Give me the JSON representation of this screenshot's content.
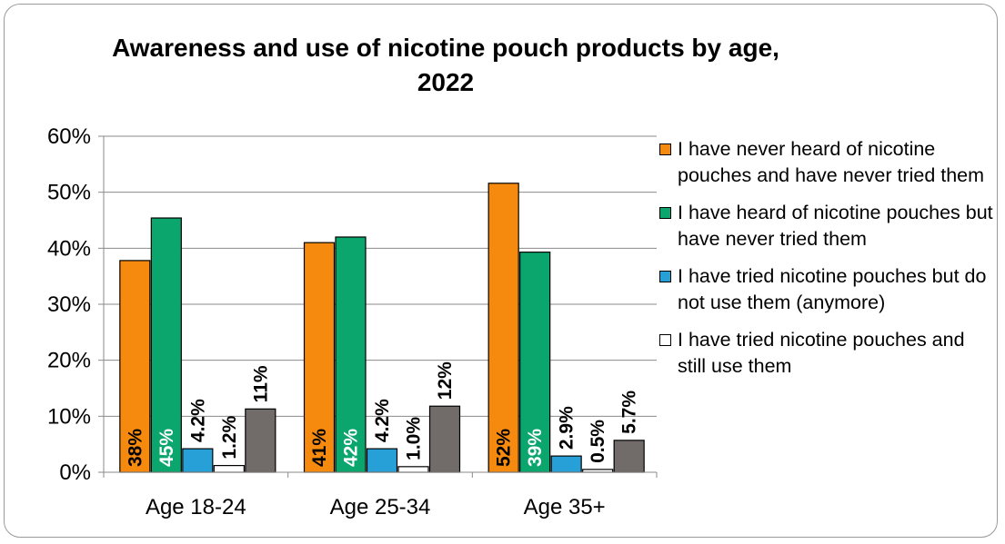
{
  "chart_data": {
    "type": "bar",
    "title": "Awareness and use of nicotine pouch products by age, 2022",
    "categories": [
      "Age 18-24",
      "Age 25-34",
      "Age 35+"
    ],
    "ylim": [
      0,
      60
    ],
    "yticks": [
      "0%",
      "10%",
      "20%",
      "30%",
      "40%",
      "50%",
      "60%"
    ],
    "grid": true,
    "legend_position": "right",
    "series": [
      {
        "name": "I have never heard of nicotine pouches and have never tried them",
        "color": "#f68a0e",
        "values": [
          37.8,
          41.0,
          51.6
        ],
        "labels": [
          "38%",
          "41%",
          "52%"
        ],
        "label_color": "#000000",
        "label_position": "inside-base"
      },
      {
        "name": "I have heard of nicotine pouches but have never tried them",
        "color": "#0aa66e",
        "values": [
          45.4,
          42.0,
          39.3
        ],
        "labels": [
          "45%",
          "42%",
          "39%"
        ],
        "label_color": "#ffffff",
        "label_position": "inside-base"
      },
      {
        "name": "I have tried nicotine pouches but do not use them (anymore)",
        "color": "#27a0d8",
        "values": [
          4.2,
          4.2,
          2.9
        ],
        "labels": [
          "4.2%",
          "4.2%",
          "2.9%"
        ],
        "label_color": "#000000",
        "label_position": "above"
      },
      {
        "name": "I have tried nicotine pouches and still use them",
        "color": "#ffffff",
        "values": [
          1.2,
          1.0,
          0.5
        ],
        "labels": [
          "1.2%",
          "1.0%",
          "0.5%"
        ],
        "label_color": "#000000",
        "label_position": "above"
      },
      {
        "name": "",
        "color": "#716c69",
        "values": [
          11.3,
          11.8,
          5.7
        ],
        "labels": [
          "11%",
          "12%",
          "5.7%"
        ],
        "label_color": "#000000",
        "label_position": "above"
      }
    ]
  }
}
